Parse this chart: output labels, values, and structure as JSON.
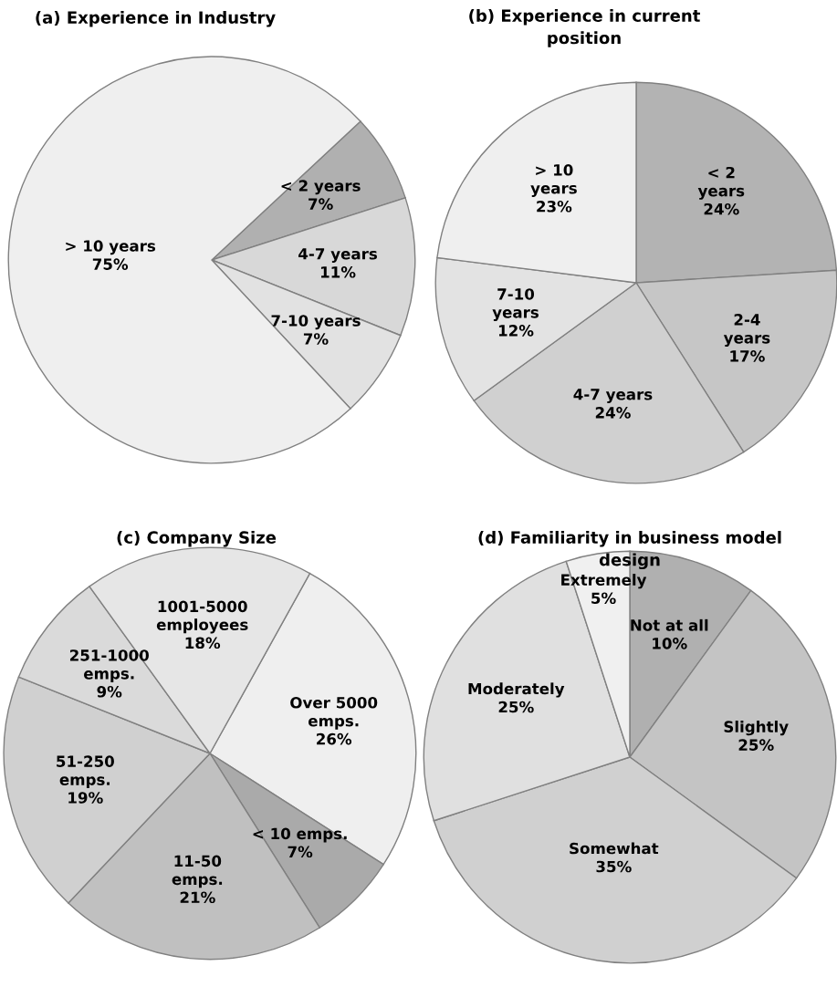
{
  "chart_data": [
    {
      "type": "pie",
      "title": "(a) Experience in Industry",
      "categories": [
        "< 2 years",
        "4-7 years",
        "7-10 years",
        "> 10 years"
      ],
      "values": [
        7,
        11,
        7,
        75
      ],
      "value_labels": [
        "7%",
        "11%",
        "7%",
        "75%"
      ],
      "colors": [
        "#b0b0b0",
        "#d8d8d8",
        "#e2e2e2",
        "#efefef"
      ]
    },
    {
      "type": "pie",
      "title": "(b) Experience in current\nposition",
      "categories": [
        "< 2\nyears",
        "2-4\nyears",
        "4-7 years",
        "7-10\nyears",
        "> 10\nyears"
      ],
      "values": [
        24,
        17,
        24,
        12,
        23
      ],
      "value_labels": [
        "24%",
        "17%",
        "24%",
        "12%",
        "23%"
      ],
      "colors": [
        "#b3b3b3",
        "#c6c6c6",
        "#d0d0d0",
        "#e3e3e3",
        "#efefef"
      ]
    },
    {
      "type": "pie",
      "title": "(c) Company Size",
      "categories": [
        "Over 5000\nemps.",
        "< 10 emps.",
        "11-50\nemps.",
        "51-250\nemps.",
        "251-1000\nemps.",
        "1001-5000\nemployees"
      ],
      "values": [
        26,
        7,
        21,
        19,
        9,
        18
      ],
      "value_labels": [
        "26%",
        "7%",
        "21%",
        "19%",
        "9%",
        "18%"
      ],
      "colors": [
        "#efefef",
        "#aaaaaa",
        "#c0c0c0",
        "#d0d0d0",
        "#dadada",
        "#e6e6e6"
      ]
    },
    {
      "type": "pie",
      "title": "(d) Familiarity in business model\ndesign",
      "categories": [
        "Not at all",
        "Slightly",
        "Somewhat",
        "Moderately",
        "Extremely"
      ],
      "values": [
        10,
        25,
        35,
        25,
        5
      ],
      "value_labels": [
        "10%",
        "25%",
        "35%",
        "25%",
        "5%"
      ],
      "colors": [
        "#b0b0b0",
        "#c4c4c4",
        "#d0d0d0",
        "#e0e0e0",
        "#f0f0f0"
      ]
    }
  ]
}
